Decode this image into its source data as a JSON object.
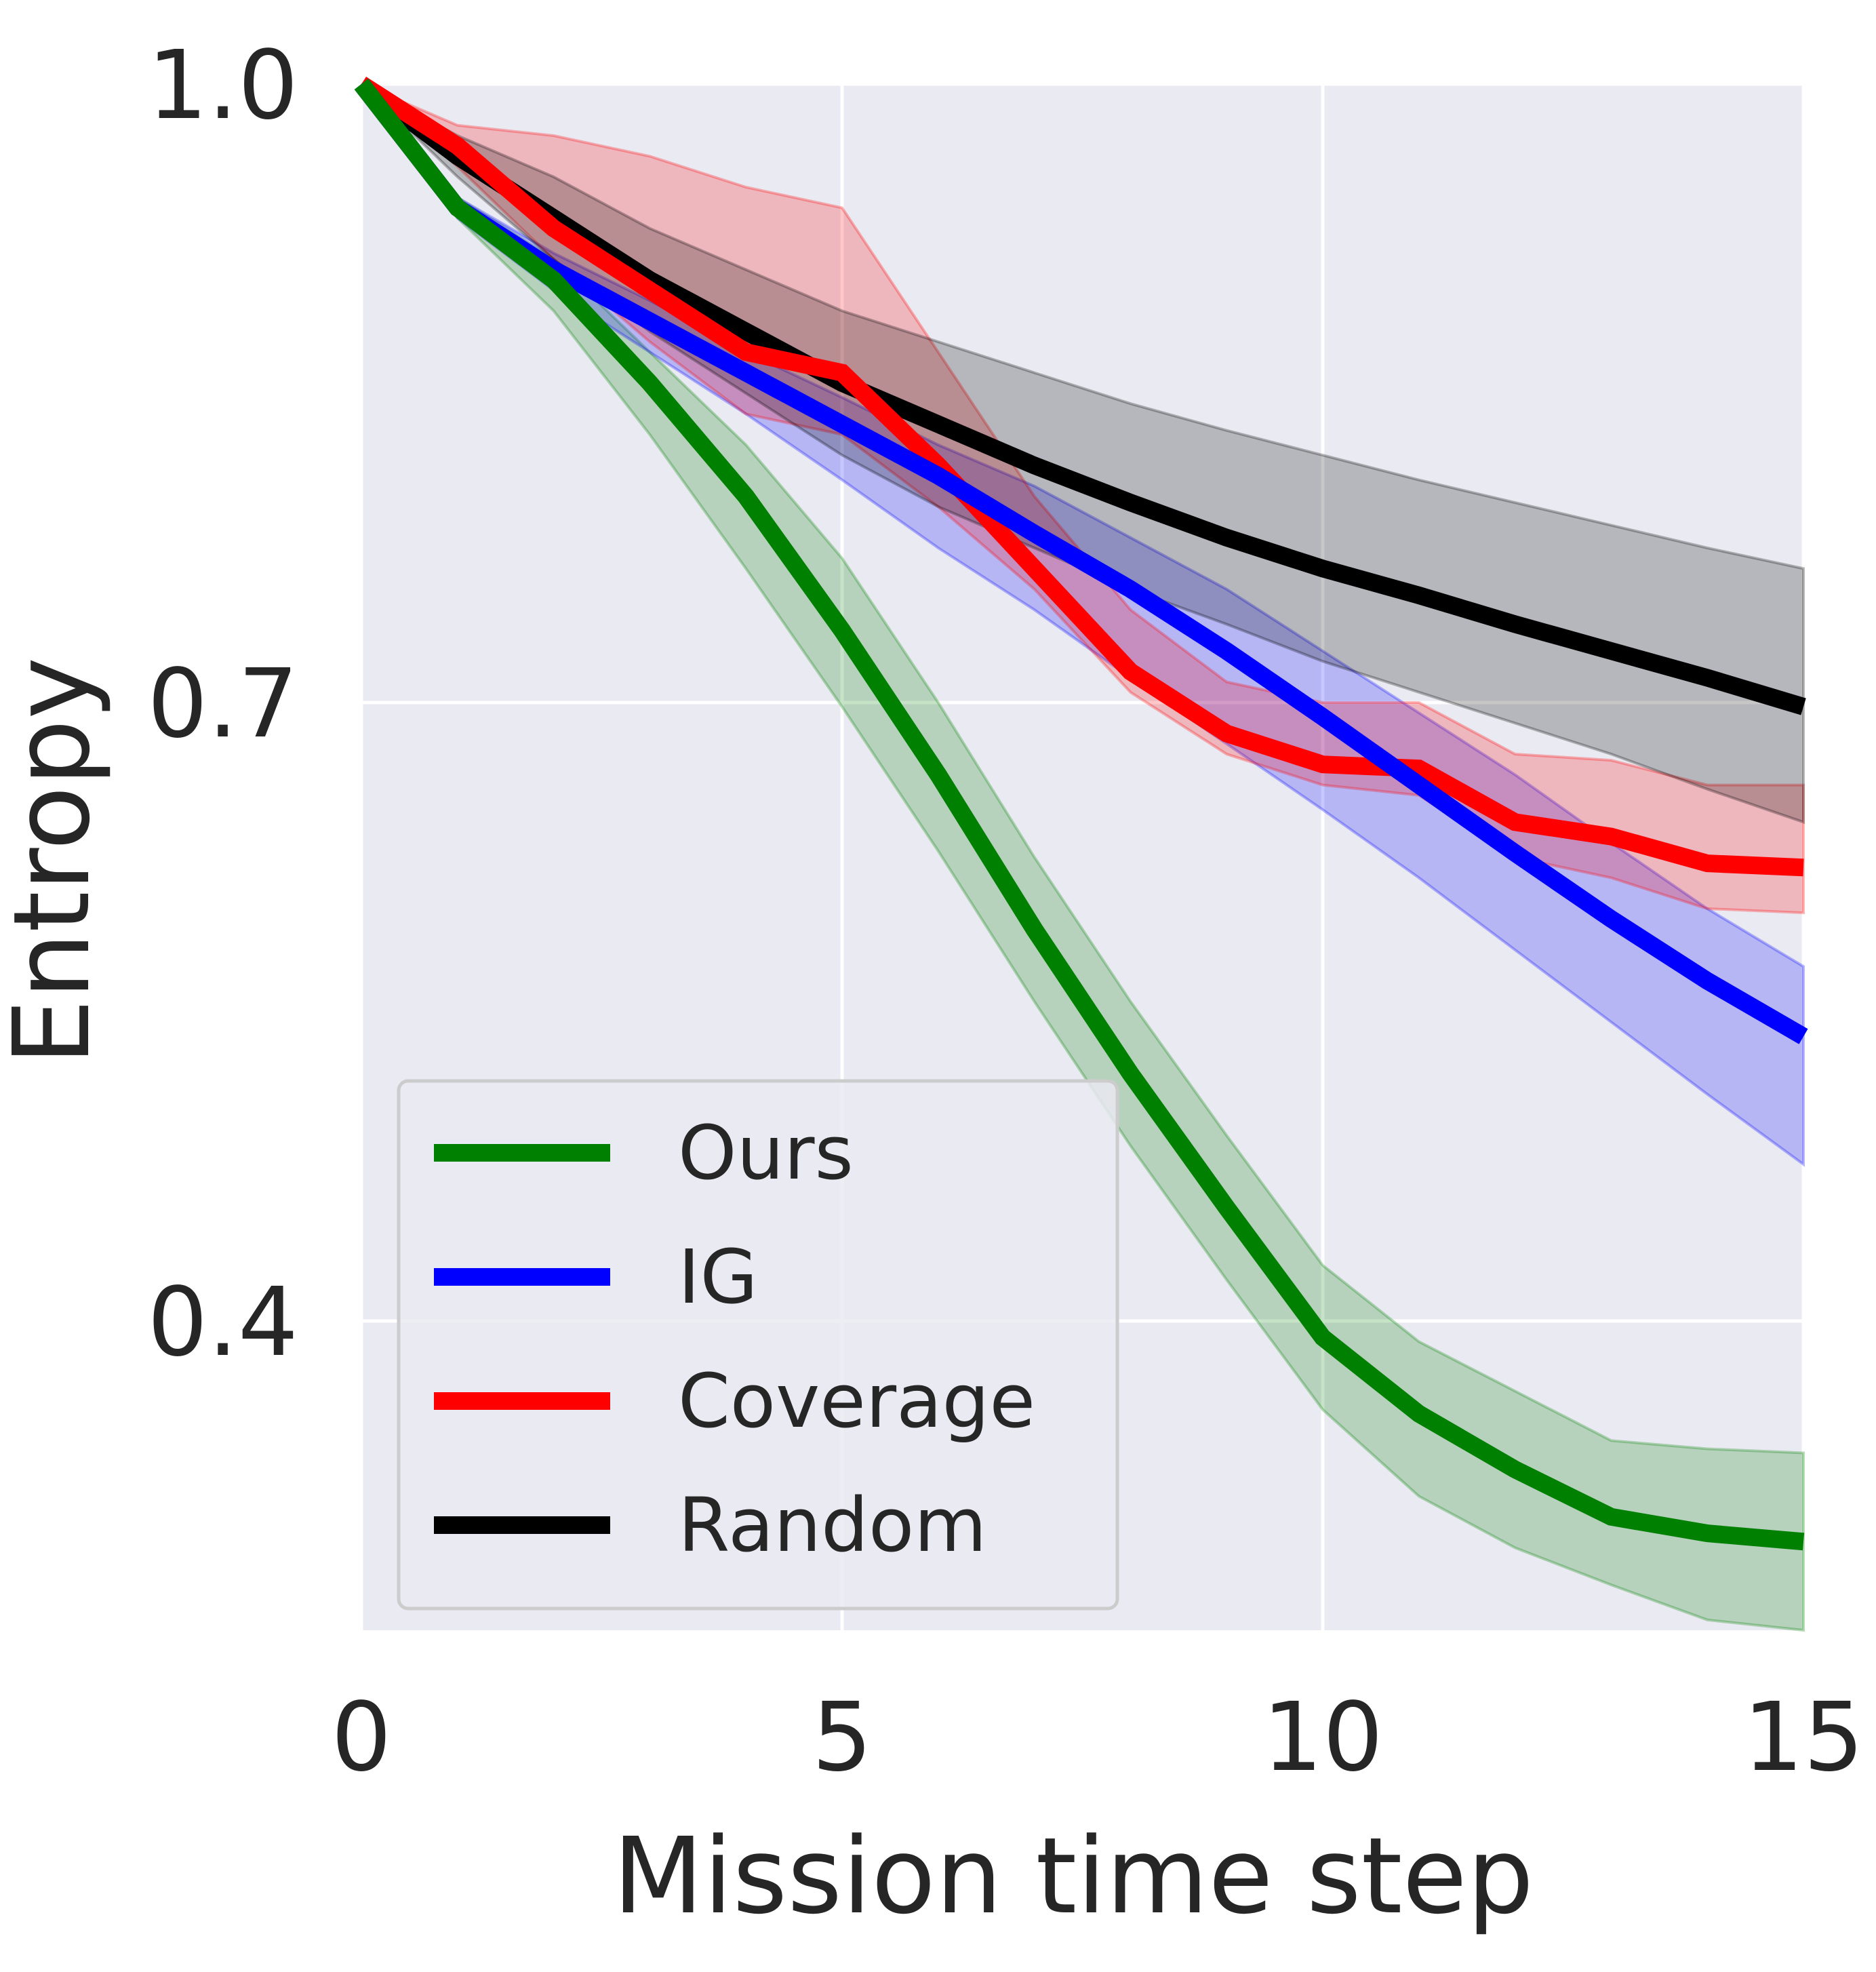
{
  "chart_data": {
    "type": "line",
    "title": "",
    "xlabel": "Mission time step",
    "ylabel": "Entropy",
    "xlim": [
      0,
      15
    ],
    "ylim": [
      0.25,
      1.0
    ],
    "xticks": [
      0,
      5,
      10,
      15
    ],
    "yticks": [
      0.4,
      0.7,
      1.0
    ],
    "xtick_labels": [
      "0",
      "5",
      "10",
      "15"
    ],
    "ytick_labels": [
      "0.4",
      "0.7",
      "1.0"
    ],
    "grid": true,
    "background": "#eaeaf2",
    "legend_position": "lower-left",
    "x": [
      0,
      1,
      2,
      3,
      4,
      5,
      6,
      7,
      8,
      9,
      10,
      11,
      12,
      13,
      14,
      15
    ],
    "series": [
      {
        "name": "Ours",
        "color": "#008000",
        "values": [
          1.0,
          0.94,
          0.905,
          0.855,
          0.8,
          0.735,
          0.665,
          0.59,
          0.52,
          0.455,
          0.392,
          0.355,
          0.328,
          0.305,
          0.297,
          0.293
        ],
        "lower": [
          1.0,
          0.935,
          0.89,
          0.83,
          0.765,
          0.698,
          0.628,
          0.555,
          0.485,
          0.42,
          0.357,
          0.315,
          0.29,
          0.272,
          0.255,
          0.25
        ],
        "upper": [
          1.0,
          0.945,
          0.915,
          0.87,
          0.825,
          0.77,
          0.7,
          0.625,
          0.555,
          0.49,
          0.427,
          0.39,
          0.366,
          0.342,
          0.338,
          0.336
        ]
      },
      {
        "name": "IG",
        "color": "#0000ff",
        "values": [
          1.0,
          0.94,
          0.91,
          0.885,
          0.86,
          0.835,
          0.81,
          0.782,
          0.755,
          0.725,
          0.693,
          0.66,
          0.627,
          0.595,
          0.565,
          0.538
        ],
        "lower": [
          1.0,
          0.935,
          0.9,
          0.87,
          0.84,
          0.808,
          0.775,
          0.745,
          0.712,
          0.68,
          0.648,
          0.615,
          0.58,
          0.545,
          0.51,
          0.476
        ],
        "upper": [
          1.0,
          0.945,
          0.918,
          0.895,
          0.87,
          0.848,
          0.825,
          0.805,
          0.78,
          0.755,
          0.725,
          0.695,
          0.665,
          0.632,
          0.6,
          0.572
        ]
      },
      {
        "name": "Coverage",
        "color": "#ff0000",
        "values": [
          1.0,
          0.97,
          0.93,
          0.9,
          0.87,
          0.86,
          0.815,
          0.765,
          0.715,
          0.685,
          0.67,
          0.668,
          0.642,
          0.635,
          0.622,
          0.62
        ],
        "lower": [
          1.0,
          0.96,
          0.915,
          0.875,
          0.84,
          0.83,
          0.795,
          0.755,
          0.705,
          0.675,
          0.66,
          0.655,
          0.625,
          0.615,
          0.6,
          0.598
        ],
        "upper": [
          1.0,
          0.98,
          0.975,
          0.965,
          0.95,
          0.94,
          0.87,
          0.8,
          0.745,
          0.71,
          0.7,
          0.7,
          0.675,
          0.672,
          0.66,
          0.66
        ]
      },
      {
        "name": "Random",
        "color": "#000000",
        "values": [
          1.0,
          0.965,
          0.935,
          0.905,
          0.88,
          0.855,
          0.835,
          0.815,
          0.797,
          0.78,
          0.765,
          0.752,
          0.738,
          0.725,
          0.712,
          0.698
        ],
        "lower": [
          1.0,
          0.955,
          0.915,
          0.88,
          0.85,
          0.82,
          0.795,
          0.775,
          0.755,
          0.738,
          0.72,
          0.705,
          0.69,
          0.675,
          0.658,
          0.642
        ],
        "upper": [
          1.0,
          0.975,
          0.955,
          0.93,
          0.91,
          0.89,
          0.875,
          0.86,
          0.845,
          0.832,
          0.82,
          0.808,
          0.797,
          0.786,
          0.775,
          0.765
        ]
      }
    ]
  }
}
